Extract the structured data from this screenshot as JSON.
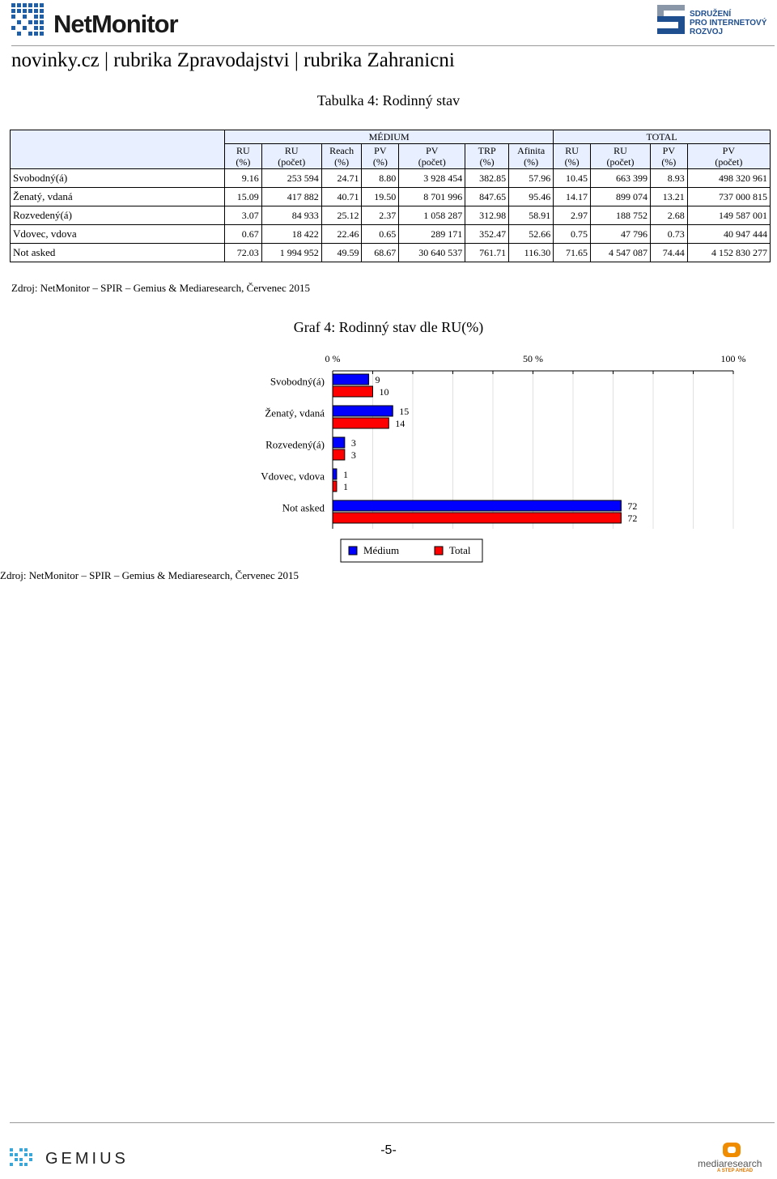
{
  "header": {
    "logo_text": "NetMonitor",
    "spir_lines": [
      "SDRUŽENÍ",
      "PRO INTERNETOVÝ",
      "ROZVOJ"
    ],
    "site_title": "novinky.cz | rubrika Zpravodajstvi | rubrika Zahranicni"
  },
  "table": {
    "title": "Tabulka 4: Rodinný stav",
    "group_medium": "MÉDIUM",
    "group_total": "TOTAL",
    "medium_columns": [
      [
        "RU",
        "(%)"
      ],
      [
        "RU",
        "(počet)"
      ],
      [
        "Reach",
        "(%)"
      ],
      [
        "PV",
        "(%)"
      ],
      [
        "PV",
        "(počet)"
      ],
      [
        "TRP",
        "(%)"
      ],
      [
        "Afinita",
        "(%)"
      ]
    ],
    "total_columns": [
      [
        "RU",
        "(%)"
      ],
      [
        "RU",
        "(počet)"
      ],
      [
        "PV",
        "(%)"
      ],
      [
        "PV",
        "(počet)"
      ]
    ],
    "rows": [
      {
        "label": "Svobodný(á)",
        "values": [
          "9.16",
          "253 594",
          "24.71",
          "8.80",
          "3 928 454",
          "382.85",
          "57.96",
          "10.45",
          "663 399",
          "8.93",
          "498 320 961"
        ]
      },
      {
        "label": "Ženatý, vdaná",
        "values": [
          "15.09",
          "417 882",
          "40.71",
          "19.50",
          "8 701 996",
          "847.65",
          "95.46",
          "14.17",
          "899 074",
          "13.21",
          "737 000 815"
        ]
      },
      {
        "label": "Rozvedený(á)",
        "values": [
          "3.07",
          "84 933",
          "25.12",
          "2.37",
          "1 058 287",
          "312.98",
          "58.91",
          "2.97",
          "188 752",
          "2.68",
          "149 587 001"
        ]
      },
      {
        "label": "Vdovec, vdova",
        "values": [
          "0.67",
          "18 422",
          "22.46",
          "0.65",
          "289 171",
          "352.47",
          "52.66",
          "0.75",
          "47 796",
          "0.73",
          "40 947 444"
        ]
      },
      {
        "label": "Not asked",
        "values": [
          "72.03",
          "1 994 952",
          "49.59",
          "68.67",
          "30 640 537",
          "761.71",
          "116.30",
          "71.65",
          "4 547 087",
          "74.44",
          "4 152 830 277"
        ]
      }
    ],
    "source": "Zdroj: NetMonitor – SPIR – Gemius & Mediaresearch, Červenec 2015"
  },
  "chart_data": {
    "type": "bar",
    "orientation": "horizontal",
    "title": "Graf 4: Rodinný stav dle RU(%)",
    "categories": [
      "Svobodný(á)",
      "Ženatý, vdaná",
      "Rozvedený(á)",
      "Vdovec, vdova",
      "Not asked"
    ],
    "series": [
      {
        "name": "Médium",
        "color": "#0000ff",
        "values": [
          9,
          15,
          3,
          1,
          72
        ]
      },
      {
        "name": "Total",
        "color": "#ff0000",
        "values": [
          10,
          14,
          3,
          1,
          72
        ]
      }
    ],
    "x_ticks": [
      "0 %",
      "50 %",
      "100 %"
    ],
    "xlim": [
      0,
      100
    ],
    "legend_position": "bottom",
    "grid": true
  },
  "chart_source": "Zdroj: NetMonitor – SPIR – Gemius & Mediaresearch, Červenec 2015",
  "footer": {
    "page_number": "-5-",
    "gemius_text": "GEMIUS",
    "mediaresearch_text": "mediaresearch",
    "mediaresearch_tag": "A STEP AHEAD"
  }
}
